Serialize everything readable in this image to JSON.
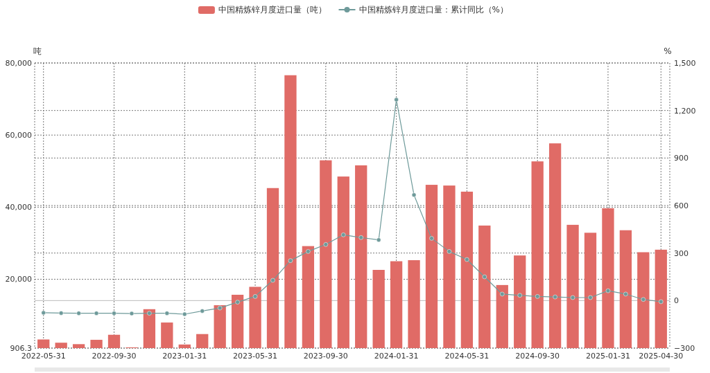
{
  "chart_data": {
    "type": "bar",
    "legend": "top",
    "grid": true,
    "ylabel": "吨",
    "y2label": "%",
    "categories": [
      "2022-05-31",
      null,
      null,
      null,
      "2022-09-30",
      null,
      null,
      null,
      "2023-01-31",
      null,
      null,
      null,
      "2023-05-31",
      null,
      null,
      null,
      "2023-09-30",
      null,
      null,
      null,
      "2024-01-31",
      null,
      null,
      null,
      "2024-05-31",
      null,
      null,
      null,
      "2024-09-30",
      null,
      null,
      null,
      "2025-01-31",
      null,
      null,
      "2025-04-30"
    ],
    "ylim": [
      906.3,
      80000
    ],
    "yticks": [
      906.3,
      {
        "value": 20000,
        "label": "20,000"
      },
      {
        "value": 40000,
        "label": "40,000"
      },
      {
        "value": 60000,
        "label": "60,000"
      },
      {
        "value": 80000,
        "label": "80,000"
      }
    ],
    "y2lim": [
      -300,
      1500
    ],
    "y2ticks": [
      -300,
      0,
      300,
      600,
      900,
      {
        "value": 1200,
        "label": "1,200"
      },
      {
        "value": 1500,
        "label": "1,500"
      }
    ],
    "series": [
      {
        "name": "中国精炼锌月度进口量（吨）",
        "color": "#e06b66",
        "values": [
          3300,
          2400,
          2000,
          3200,
          4600,
          1100,
          11700,
          8000,
          1900,
          4800,
          12800,
          15700,
          17900,
          45300,
          76600,
          29200,
          53000,
          48500,
          51600,
          22600,
          25000,
          25300,
          46200,
          46000,
          44300,
          34900,
          18400,
          26600,
          52700,
          57700,
          35100,
          32900,
          39700,
          33600,
          27500,
          28200
        ]
      },
      {
        "name": "中国精炼锌月度进口量：累计同比（%）",
        "type": "line",
        "axis": "y2",
        "marker": "circle",
        "color": "#6e9a9a",
        "values": [
          -77,
          -79,
          -80,
          -80,
          -80,
          -82,
          -80,
          -80,
          -86,
          -66,
          -47,
          -10,
          26,
          128,
          252,
          310,
          354,
          415,
          398,
          383,
          1268,
          667,
          393,
          310,
          259,
          150,
          41,
          33,
          26,
          23,
          19,
          19,
          62,
          41,
          7,
          -7
        ]
      }
    ]
  }
}
